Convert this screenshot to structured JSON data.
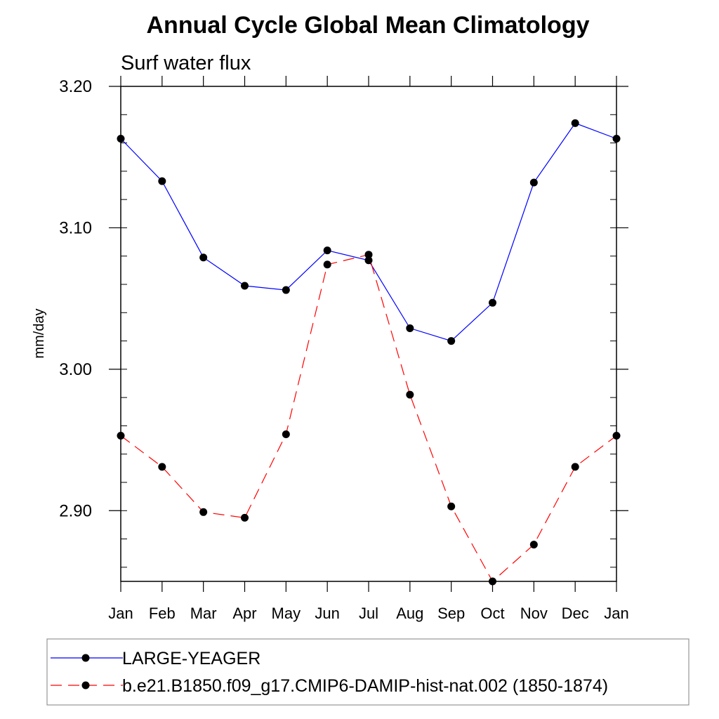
{
  "chart_data": {
    "type": "line",
    "title": "Annual Cycle Global Mean Climatology",
    "subtitle": "Surf water flux",
    "xlabel": "",
    "ylabel": "mm/day",
    "categories": [
      "Jan",
      "Feb",
      "Mar",
      "Apr",
      "May",
      "Jun",
      "Jul",
      "Aug",
      "Sep",
      "Oct",
      "Nov",
      "Dec",
      "Jan"
    ],
    "ylim": [
      2.85,
      3.2
    ],
    "yticks": [
      "2.90",
      "3.00",
      "3.10",
      "3.20"
    ],
    "grid": false,
    "legend_position": "bottom",
    "series": [
      {
        "name": "LARGE-YEAGER",
        "color": "#0000ff",
        "line_style": "solid",
        "marker": "filled-circle",
        "values": [
          3.163,
          3.133,
          3.079,
          3.059,
          3.056,
          3.084,
          3.077,
          3.029,
          3.02,
          3.047,
          3.132,
          3.174,
          3.163
        ]
      },
      {
        "name": "b.e21.B1850.f09_g17.CMIP6-DAMIP-hist-nat.002 (1850-1874)",
        "color": "#ff0000",
        "line_style": "dashed",
        "marker": "filled-circle",
        "values": [
          2.953,
          2.931,
          2.899,
          2.895,
          2.954,
          3.074,
          3.081,
          2.982,
          2.903,
          2.85,
          2.876,
          2.931,
          2.953
        ]
      }
    ]
  }
}
